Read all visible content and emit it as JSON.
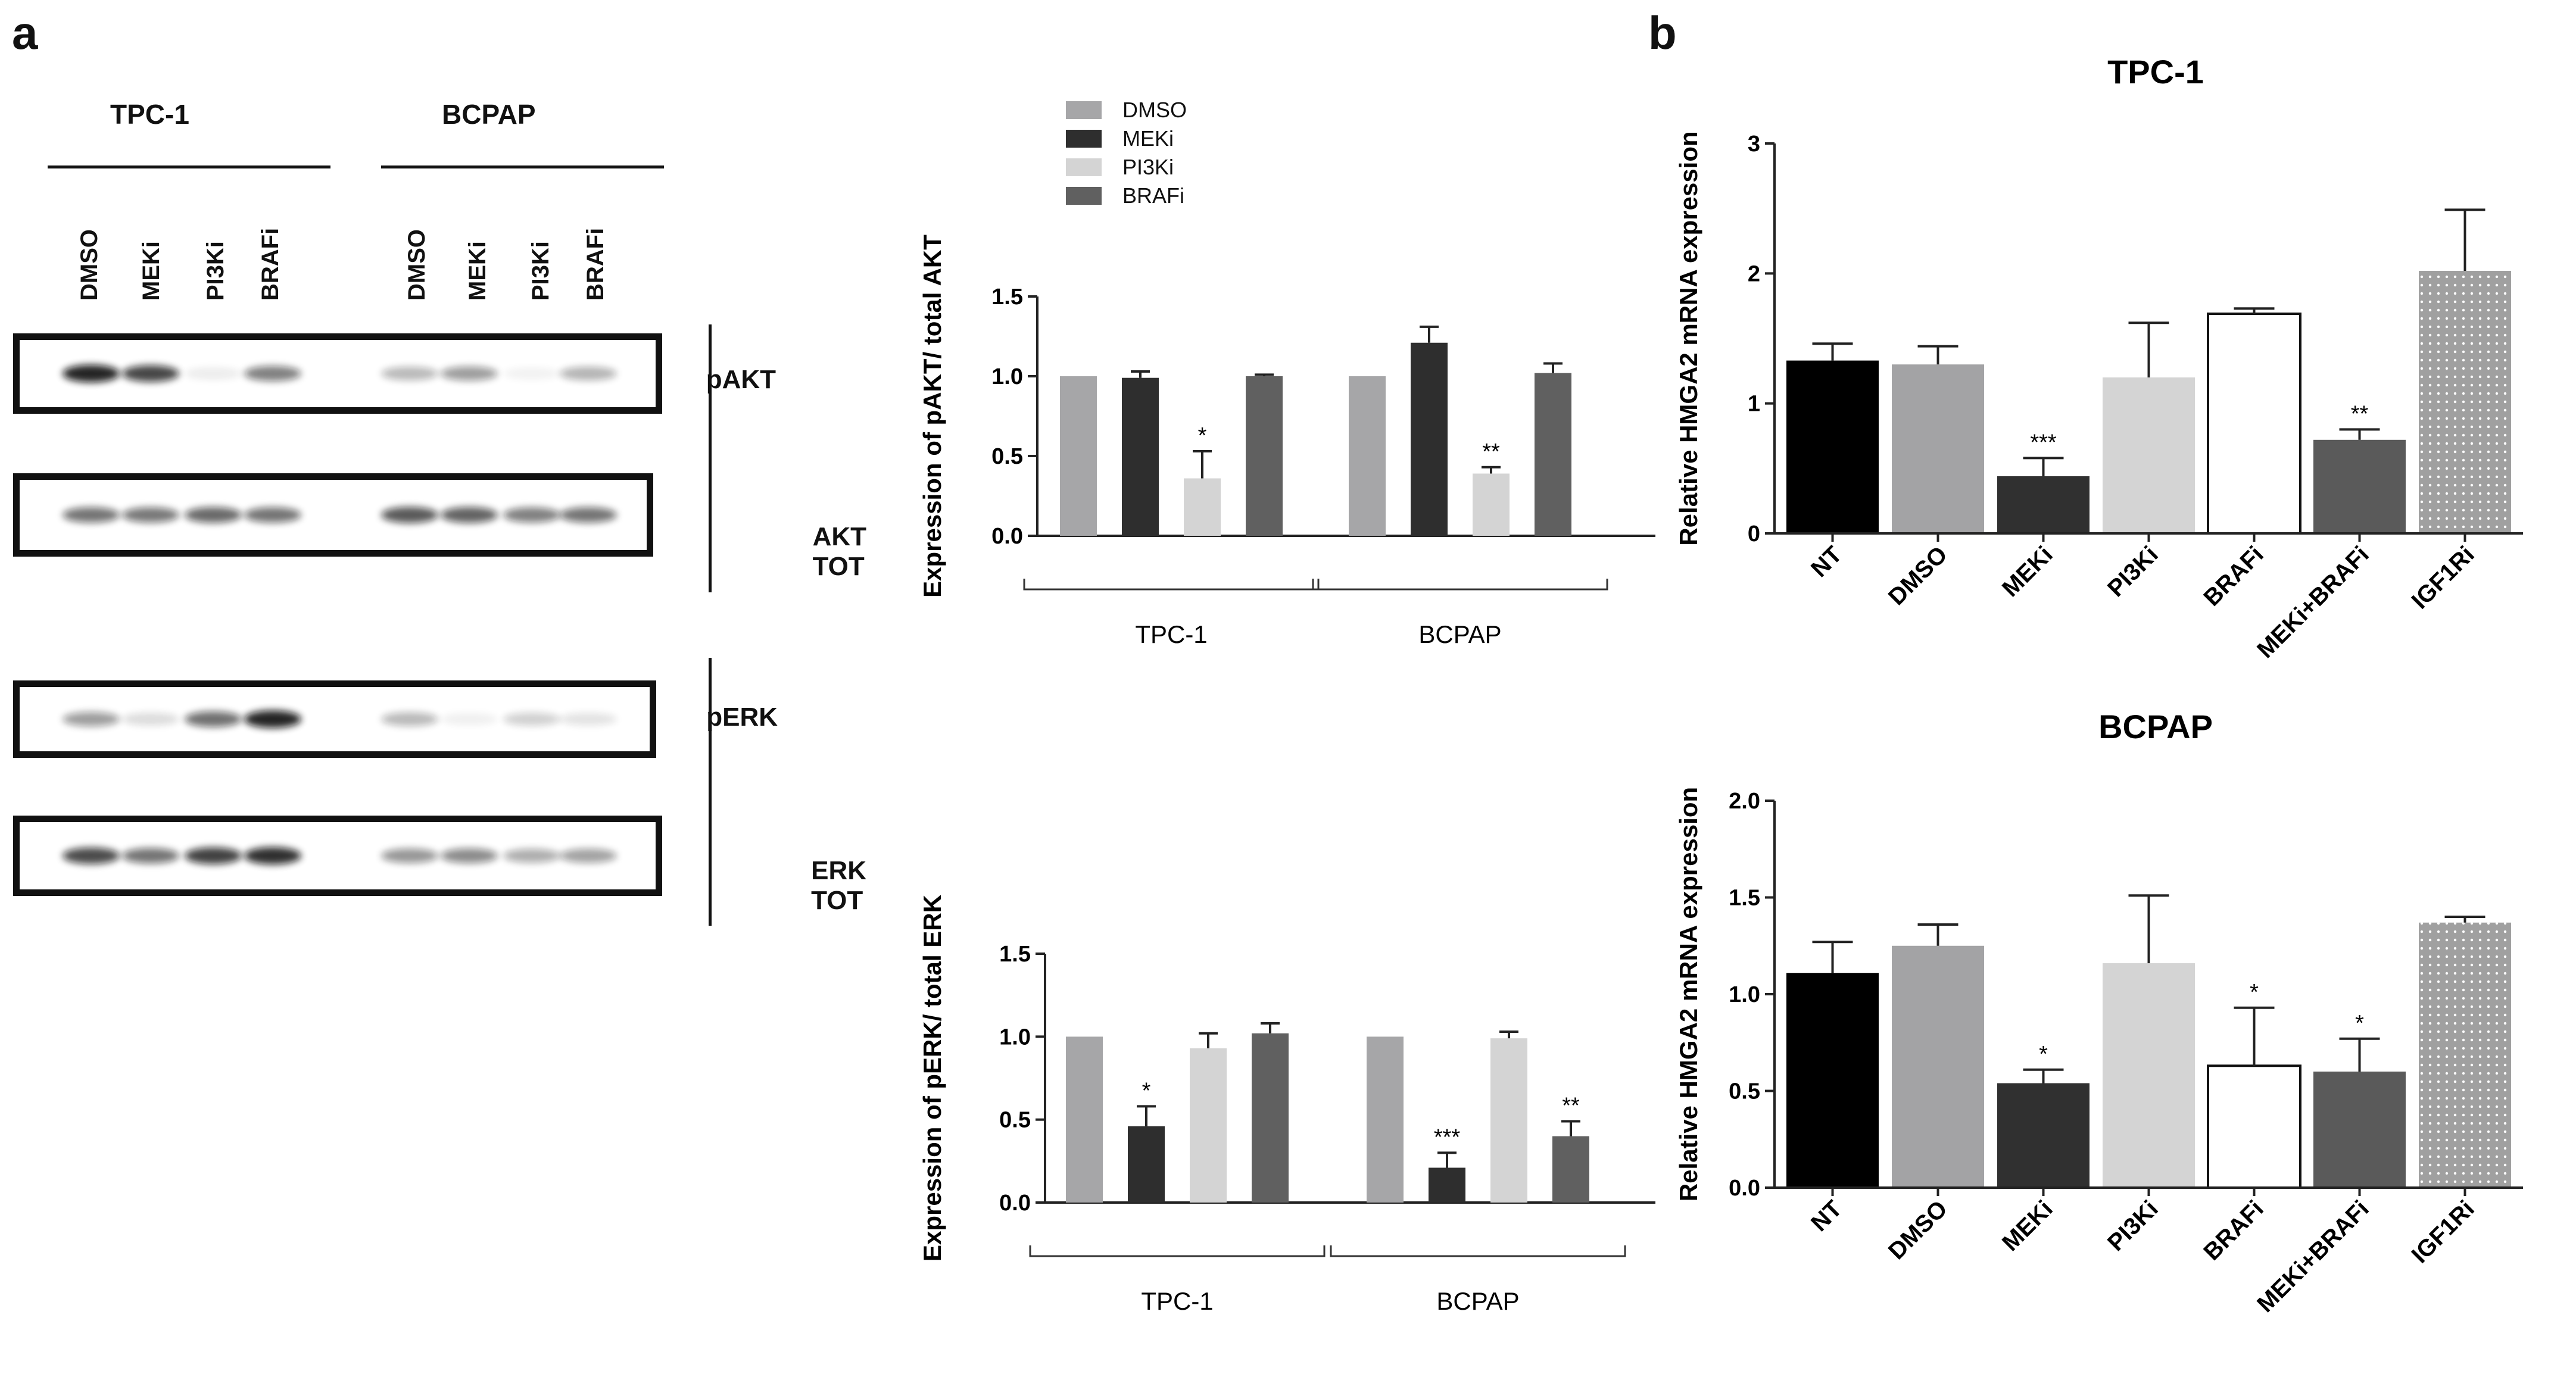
{
  "panels": {
    "a": "a",
    "b": "b"
  },
  "western_blot": {
    "cell_lines": [
      "TPC-1",
      "BCPAP"
    ],
    "lanes": [
      "DMSO",
      "MEKi",
      "PI3Ki",
      "BRAFi",
      "DMSO",
      "MEKi",
      "PI3Ki",
      "BRAFi"
    ],
    "rows": [
      {
        "label": "pAKT",
        "intensity": [
          0.95,
          0.8,
          0.08,
          0.55,
          0.3,
          0.42,
          0.05,
          0.32
        ]
      },
      {
        "label": "AKT TOT",
        "intensity": [
          0.6,
          0.58,
          0.65,
          0.6,
          0.72,
          0.68,
          0.55,
          0.6
        ]
      },
      {
        "label": "pERK",
        "intensity": [
          0.42,
          0.15,
          0.62,
          0.95,
          0.3,
          0.06,
          0.2,
          0.12
        ]
      },
      {
        "label": "ERK TOT",
        "intensity": [
          0.78,
          0.6,
          0.82,
          0.9,
          0.45,
          0.5,
          0.35,
          0.4
        ]
      }
    ]
  },
  "legend": {
    "items": [
      {
        "label": "DMSO",
        "color": "#a6a6a8"
      },
      {
        "label": "MEKi",
        "color": "#2e2e2e"
      },
      {
        "label": "PI3Ki",
        "color": "#d4d4d4"
      },
      {
        "label": "BRAFi",
        "color": "#606060"
      }
    ]
  },
  "chart_data": [
    {
      "id": "pAKT",
      "type": "bar",
      "ylabel": "Expression of pAKT/ total AKT",
      "ylim": [
        0,
        1.5
      ],
      "yticks": [
        "0.0",
        "0.5",
        "1.0",
        "1.5"
      ],
      "groups": [
        "TPC-1",
        "BCPAP"
      ],
      "series_names": [
        "DMSO",
        "MEKi",
        "PI3Ki",
        "BRAFi"
      ],
      "colors": [
        "#a6a6a8",
        "#2e2e2e",
        "#d4d4d4",
        "#606060"
      ],
      "values": [
        [
          1.0,
          0.99,
          0.36,
          1.0
        ],
        [
          1.0,
          1.21,
          0.39,
          1.02
        ]
      ],
      "errors": [
        [
          0,
          0.04,
          0.17,
          0.01
        ],
        [
          0,
          0.1,
          0.04,
          0.06
        ]
      ],
      "sig": [
        [
          "",
          "",
          "*",
          ""
        ],
        [
          "",
          "",
          "**",
          ""
        ]
      ]
    },
    {
      "id": "pERK",
      "type": "bar",
      "ylabel": "Expression of pERK/ total ERK",
      "ylim": [
        0,
        1.5
      ],
      "yticks": [
        "0.0",
        "0.5",
        "1.0",
        "1.5"
      ],
      "groups": [
        "TPC-1",
        "BCPAP"
      ],
      "series_names": [
        "DMSO",
        "MEKi",
        "PI3Ki",
        "BRAFi"
      ],
      "colors": [
        "#a6a6a8",
        "#2e2e2e",
        "#d4d4d4",
        "#606060"
      ],
      "values": [
        [
          1.0,
          0.46,
          0.93,
          1.02
        ],
        [
          1.0,
          0.21,
          0.99,
          0.4
        ]
      ],
      "errors": [
        [
          0,
          0.12,
          0.09,
          0.06
        ],
        [
          0,
          0.09,
          0.04,
          0.09
        ]
      ],
      "sig": [
        [
          "",
          "*",
          "",
          ""
        ],
        [
          "",
          "***",
          "",
          "**"
        ]
      ]
    },
    {
      "id": "TPC1-HMGA2",
      "type": "bar",
      "title": "TPC-1",
      "ylabel": "Relative HMGA2 mRNA expression",
      "ylim": [
        0,
        3
      ],
      "yticks": [
        "0",
        "1",
        "2",
        "3"
      ],
      "categories": [
        "NT",
        "DMSO",
        "MEKi",
        "PI3Ki",
        "BRAFi",
        "MEKi+BRAFi",
        "IGF1Ri"
      ],
      "values": [
        1.33,
        1.3,
        0.44,
        1.2,
        1.69,
        0.72,
        2.02
      ],
      "errors": [
        0.13,
        0.14,
        0.14,
        0.42,
        0.04,
        0.08,
        0.47
      ],
      "sig": [
        "",
        "",
        "***",
        "",
        "",
        "**",
        ""
      ]
    },
    {
      "id": "BCPAP-HMGA2",
      "type": "bar",
      "title": "BCPAP",
      "ylabel": "Relative HMGA2 mRNA expression",
      "ylim": [
        0,
        2.0
      ],
      "yticks": [
        "0.0",
        "0.5",
        "1.0",
        "1.5",
        "2.0"
      ],
      "categories": [
        "NT",
        "DMSO",
        "MEKi",
        "PI3Ki",
        "BRAFi",
        "MEKi+BRAFi",
        "IGF1Ri"
      ],
      "values": [
        1.11,
        1.25,
        0.54,
        1.16,
        0.63,
        0.6,
        1.37
      ],
      "errors": [
        0.16,
        0.11,
        0.07,
        0.35,
        0.3,
        0.17,
        0.03
      ],
      "sig": [
        "",
        "",
        "*",
        "",
        "*",
        "*",
        ""
      ]
    }
  ]
}
